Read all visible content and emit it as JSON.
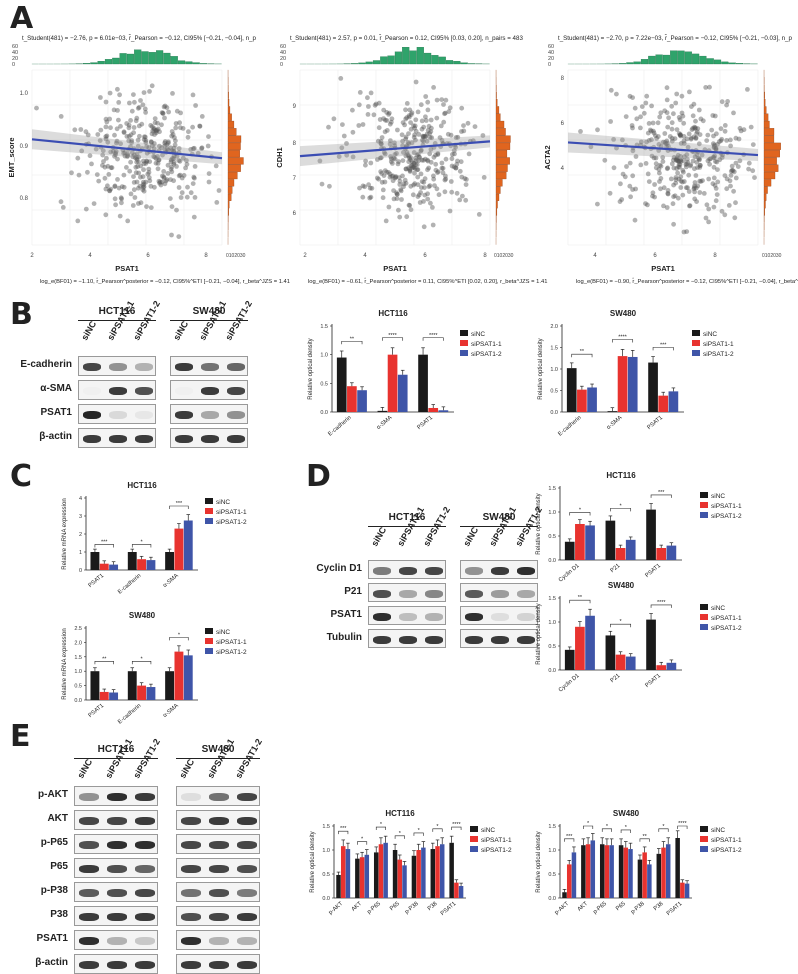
{
  "colors": {
    "siNC": "#1a1a1a",
    "siPSAT1_1": "#e8332f",
    "siPSAT1_2": "#3f55a8",
    "hist_top": "#2fa36b",
    "hist_side": "#e0651f",
    "reg_line": "#3b4db3",
    "point": "#555555"
  },
  "panels": {
    "A": "A",
    "B": "B",
    "C": "C",
    "D": "D",
    "E": "E"
  },
  "panel_a": {
    "scatters": [
      {
        "stats": "t_Student(481) = −2.76, p = 6.01e−03, r̂_Pearson = −0.12, CI95% [−0.21, −0.04], n_p",
        "xlabel": "PSAT1",
        "ylabel": "EMT_score",
        "xticks": [
          "2",
          "4",
          "6",
          "8"
        ],
        "yticks": [
          "1.0",
          "0.9",
          "0.8"
        ],
        "top_hist_ticks": [
          "60",
          "40",
          "20",
          "0"
        ],
        "side_hist_ticks": "0102030",
        "bayes": "log_e(BF01) = −1.10, r̂_Pearson^posterior = −0.12, CI95%^ETI [−0.21, −0.04], r_beta^JZS = 1.41"
      },
      {
        "stats": "t_Student(481) = 2.57, p = 0.01, r̂_Pearson = 0.12, CI95% [0.03, 0.20], n_pairs = 483",
        "xlabel": "PSAT1",
        "ylabel": "CDH1",
        "xticks": [
          "2",
          "4",
          "6",
          "8"
        ],
        "yticks": [
          "9",
          "8",
          "7",
          "6"
        ],
        "top_hist_ticks": [
          "60",
          "40",
          "20",
          "0"
        ],
        "side_hist_ticks": "0102030",
        "bayes": "log_e(BF01) = −0.61, r̂_Pearson^posterior = 0.11, CI95%^ETI [0.02, 0.20], r_beta^JZS = 1.41"
      },
      {
        "stats": "t_Student(481) = −2.70, p = 7.22e−03, r̂_Pearson = −0.12, CI95% [−0.21, −0.03], n_p",
        "xlabel": "PSAT1",
        "ylabel": "ACTA2",
        "xticks": [
          "4",
          "6",
          "8"
        ],
        "yticks": [
          "8",
          "6",
          "4"
        ],
        "top_hist_ticks": [
          "60",
          "40",
          "20",
          "0"
        ],
        "side_hist_ticks": "0102030",
        "bayes": "log_e(BF01) = −0.90, r̂_Pearson^posterior = −0.12, CI95%^ETI [−0.21, −0.04], r_beta^JZS = 1.41"
      }
    ]
  },
  "westerns": {
    "B": {
      "groups": [
        "HCT116",
        "SW480"
      ],
      "lanes": [
        "siNC",
        "siPSAT1-1",
        "siPSAT1-2"
      ],
      "rows": [
        "E-cadherin",
        "α-SMA",
        "PSAT1",
        "β-actin"
      ]
    },
    "D": {
      "groups": [
        "HCT116",
        "SW480"
      ],
      "lanes": [
        "siNC",
        "siPSAT1-1",
        "siPSAT1-2"
      ],
      "rows": [
        "Cyclin D1",
        "P21",
        "PSAT1",
        "Tubulin"
      ]
    },
    "E": {
      "groups": [
        "HCT116",
        "SW480"
      ],
      "lanes": [
        "siNC",
        "siPSAT1-1",
        "siPSAT1-2"
      ],
      "rows": [
        "p-AKT",
        "AKT",
        "p-P65",
        "P65",
        "p-P38",
        "P38",
        "PSAT1",
        "β-actin"
      ]
    }
  },
  "legend": [
    "siNC",
    "siPSAT1-1",
    "siPSAT1-2"
  ],
  "chart_data": [
    {
      "id": "B1",
      "type": "bar",
      "title": "HCT116",
      "ylabel": "Relative optical density",
      "categories": [
        "E-cadherin",
        "α-SMA",
        "PSAT1"
      ],
      "ylim": [
        0,
        1.5
      ],
      "yticks": [
        "0.0",
        "0.5",
        "1.0",
        "1.5"
      ],
      "series": [
        {
          "name": "siNC",
          "values": [
            0.95,
            0.02,
            1.0
          ]
        },
        {
          "name": "siPSAT1-1",
          "values": [
            0.45,
            1.0,
            0.07
          ]
        },
        {
          "name": "siPSAT1-2",
          "values": [
            0.38,
            0.65,
            0.03
          ]
        }
      ],
      "sig": [
        "**",
        "*",
        "****",
        "****",
        "****",
        "****"
      ]
    },
    {
      "id": "B2",
      "type": "bar",
      "title": "SW480",
      "ylabel": "Relative optical density",
      "categories": [
        "E-cadherin",
        "α-SMA",
        "PSAT1"
      ],
      "ylim": [
        0,
        2.0
      ],
      "yticks": [
        "0.0",
        "0.5",
        "1.0",
        "1.5",
        "2.0"
      ],
      "series": [
        {
          "name": "siNC",
          "values": [
            1.02,
            0.02,
            1.15
          ]
        },
        {
          "name": "siPSAT1-1",
          "values": [
            0.52,
            1.3,
            0.38
          ]
        },
        {
          "name": "siPSAT1-2",
          "values": [
            0.57,
            1.28,
            0.48
          ]
        }
      ],
      "sig": [
        "**",
        "**",
        "****",
        "****",
        "***",
        "***"
      ]
    },
    {
      "id": "C1",
      "type": "bar",
      "title": "HCT116",
      "ylabel": "Relative mRNA expression",
      "categories": [
        "PSAT1",
        "E-cadherin",
        "α-SMA"
      ],
      "ylim": [
        0,
        4
      ],
      "yticks": [
        "0",
        "1",
        "2",
        "3",
        "4"
      ],
      "series": [
        {
          "name": "siNC",
          "values": [
            1.0,
            1.0,
            1.0
          ]
        },
        {
          "name": "siPSAT1-1",
          "values": [
            0.35,
            0.6,
            2.3
          ]
        },
        {
          "name": "siPSAT1-2",
          "values": [
            0.3,
            0.55,
            2.75
          ]
        }
      ],
      "sig": [
        "***",
        "***",
        "*",
        "*",
        "***",
        "**"
      ]
    },
    {
      "id": "C2",
      "type": "bar",
      "title": "SW480",
      "ylabel": "Relative mRNA expression",
      "categories": [
        "PSAT1",
        "E-cadherin",
        "α-SMA"
      ],
      "ylim": [
        0,
        2.5
      ],
      "yticks": [
        "0.0",
        "0.5",
        "1.0",
        "1.5",
        "2.0",
        "2.5"
      ],
      "series": [
        {
          "name": "siNC",
          "values": [
            1.0,
            1.0,
            1.0
          ]
        },
        {
          "name": "siPSAT1-1",
          "values": [
            0.28,
            0.5,
            1.68
          ]
        },
        {
          "name": "siPSAT1-2",
          "values": [
            0.26,
            0.45,
            1.55
          ]
        }
      ],
      "sig": [
        "**",
        "**",
        "*",
        "*",
        "*",
        "*"
      ]
    },
    {
      "id": "D1",
      "type": "bar",
      "title": "HCT116",
      "ylabel": "Relative optical density",
      "categories": [
        "Cyclin D1",
        "P21",
        "PSAT1"
      ],
      "ylim": [
        0,
        1.5
      ],
      "yticks": [
        "0.0",
        "0.5",
        "1.0",
        "1.5"
      ],
      "series": [
        {
          "name": "siNC",
          "values": [
            0.38,
            0.82,
            1.05
          ]
        },
        {
          "name": "siPSAT1-1",
          "values": [
            0.75,
            0.25,
            0.25
          ]
        },
        {
          "name": "siPSAT1-2",
          "values": [
            0.72,
            0.42,
            0.3
          ]
        }
      ],
      "sig": [
        "*",
        "*",
        "*",
        "*",
        "***",
        "***"
      ]
    },
    {
      "id": "D2",
      "type": "bar",
      "title": "SW480",
      "ylabel": "Relative optical density",
      "categories": [
        "Cyclin D1",
        "P21",
        "PSAT1"
      ],
      "ylim": [
        0,
        1.5
      ],
      "yticks": [
        "0.0",
        "0.5",
        "1.0",
        "1.5"
      ],
      "series": [
        {
          "name": "siNC",
          "values": [
            0.42,
            0.72,
            1.05
          ]
        },
        {
          "name": "siPSAT1-1",
          "values": [
            0.9,
            0.32,
            0.1
          ]
        },
        {
          "name": "siPSAT1-2",
          "values": [
            1.13,
            0.28,
            0.15
          ]
        }
      ],
      "sig": [
        "**",
        "**",
        "*",
        "*",
        "****",
        "****"
      ]
    },
    {
      "id": "E1",
      "type": "bar",
      "title": "HCT116",
      "ylabel": "Relative optical density",
      "categories": [
        "p-AKT",
        "AKT",
        "p-P65",
        "P65",
        "p-P38",
        "P38",
        "PSAT1"
      ],
      "ylim": [
        0,
        1.5
      ],
      "yticks": [
        "0.0",
        "0.5",
        "1.0",
        "1.5"
      ],
      "series": [
        {
          "name": "siNC",
          "values": [
            0.48,
            0.82,
            0.95,
            1.0,
            0.88,
            1.02,
            1.15
          ]
        },
        {
          "name": "siPSAT1-1",
          "values": [
            1.08,
            0.85,
            1.12,
            0.8,
            1.0,
            1.08,
            0.32
          ]
        },
        {
          "name": "siPSAT1-2",
          "values": [
            1.02,
            0.9,
            1.15,
            0.68,
            1.05,
            1.12,
            0.25
          ]
        }
      ],
      "sig": [
        "***",
        "*",
        "*",
        "*",
        "*",
        "*",
        "****"
      ]
    },
    {
      "id": "E2",
      "type": "bar",
      "title": "SW480",
      "ylabel": "Relative optical density",
      "categories": [
        "p-AKT",
        "AKT",
        "p-P65",
        "P65",
        "p-P38",
        "P38",
        "PSAT1"
      ],
      "ylim": [
        0,
        1.5
      ],
      "yticks": [
        "0.0",
        "0.5",
        "1.0",
        "1.5"
      ],
      "series": [
        {
          "name": "siNC",
          "values": [
            0.12,
            1.1,
            1.12,
            1.1,
            0.8,
            0.92,
            1.25
          ]
        },
        {
          "name": "siPSAT1-1",
          "values": [
            0.7,
            1.12,
            1.1,
            1.05,
            0.95,
            1.05,
            0.32
          ]
        },
        {
          "name": "siPSAT1-2",
          "values": [
            0.95,
            1.2,
            1.1,
            1.02,
            0.7,
            1.12,
            0.3
          ]
        }
      ],
      "sig": [
        "***",
        "*",
        "*",
        "*",
        "**",
        "*",
        "****"
      ]
    }
  ]
}
